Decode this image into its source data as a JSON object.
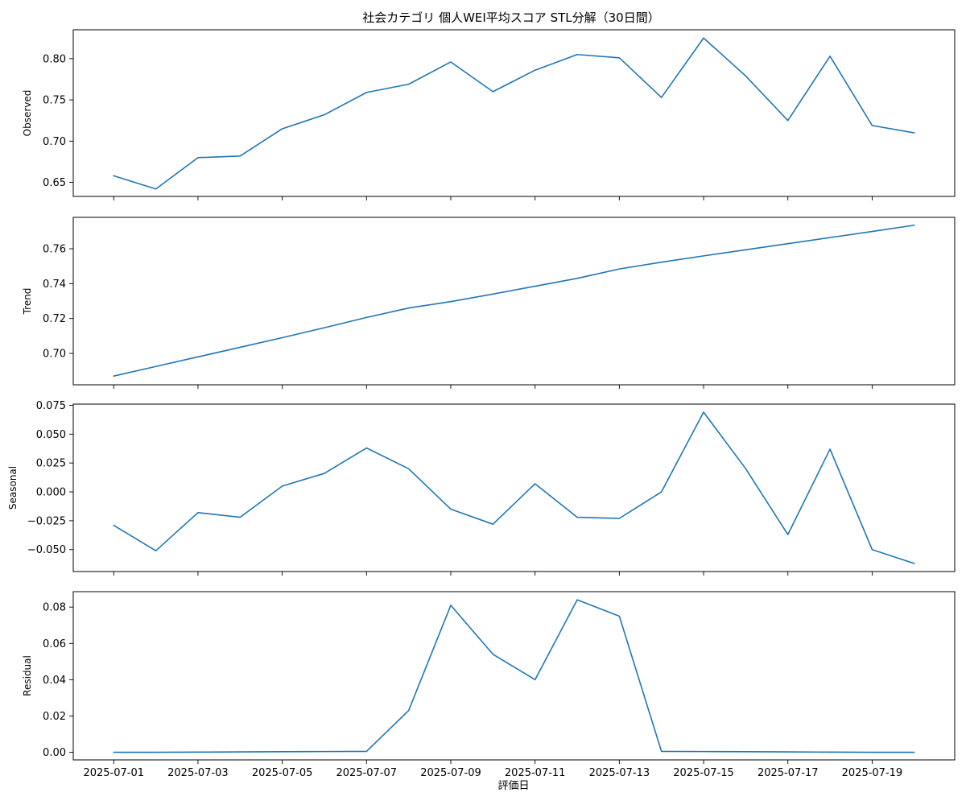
{
  "title": "社会カテゴリ 個人WEI平均スコア STL分解（30日間）",
  "xlabel": "評価日",
  "colors": {
    "line": "#1f77b4"
  },
  "chart_data": [
    {
      "type": "line",
      "ylabel": "Observed",
      "x": [
        "2025-07-01",
        "2025-07-02",
        "2025-07-03",
        "2025-07-04",
        "2025-07-05",
        "2025-07-06",
        "2025-07-07",
        "2025-07-08",
        "2025-07-09",
        "2025-07-10",
        "2025-07-11",
        "2025-07-12",
        "2025-07-13",
        "2025-07-14",
        "2025-07-15",
        "2025-07-16",
        "2025-07-17",
        "2025-07-18",
        "2025-07-19",
        "2025-07-20"
      ],
      "values": [
        0.658,
        0.642,
        0.68,
        0.682,
        0.715,
        0.732,
        0.759,
        0.769,
        0.796,
        0.76,
        0.786,
        0.805,
        0.801,
        0.753,
        0.825,
        0.779,
        0.725,
        0.803,
        0.719,
        0.71
      ],
      "ylim": [
        0.633,
        0.835
      ],
      "yticks": [
        "0.65",
        "0.70",
        "0.75",
        "0.80"
      ],
      "grid": false
    },
    {
      "type": "line",
      "ylabel": "Trend",
      "x": [
        "2025-07-01",
        "2025-07-02",
        "2025-07-03",
        "2025-07-04",
        "2025-07-05",
        "2025-07-06",
        "2025-07-07",
        "2025-07-08",
        "2025-07-09",
        "2025-07-10",
        "2025-07-11",
        "2025-07-12",
        "2025-07-13",
        "2025-07-14",
        "2025-07-15",
        "2025-07-16",
        "2025-07-17",
        "2025-07-18",
        "2025-07-19",
        "2025-07-20"
      ],
      "values": [
        0.687,
        0.6925,
        0.698,
        0.7035,
        0.709,
        0.7147,
        0.7206,
        0.726,
        0.7297,
        0.734,
        0.7385,
        0.743,
        0.7484,
        0.7523,
        0.7559,
        0.7594,
        0.7629,
        0.7664,
        0.7699,
        0.7735
      ],
      "ylim": [
        0.682,
        0.778
      ],
      "yticks": [
        "0.70",
        "0.72",
        "0.74",
        "0.76"
      ],
      "grid": false
    },
    {
      "type": "line",
      "ylabel": "Seasonal",
      "x": [
        "2025-07-01",
        "2025-07-02",
        "2025-07-03",
        "2025-07-04",
        "2025-07-05",
        "2025-07-06",
        "2025-07-07",
        "2025-07-08",
        "2025-07-09",
        "2025-07-10",
        "2025-07-11",
        "2025-07-12",
        "2025-07-13",
        "2025-07-14",
        "2025-07-15",
        "2025-07-16",
        "2025-07-17",
        "2025-07-18",
        "2025-07-19",
        "2025-07-20"
      ],
      "values": [
        -0.029,
        -0.051,
        -0.018,
        -0.022,
        0.005,
        0.016,
        0.038,
        0.02,
        -0.015,
        -0.028,
        0.007,
        -0.022,
        -0.023,
        0.0,
        0.069,
        0.02,
        -0.037,
        0.037,
        -0.05,
        -0.062
      ],
      "ylim": [
        -0.069,
        0.076
      ],
      "yticks": [
        "−0.050",
        "−0.025",
        "0.000",
        "0.025",
        "0.050",
        "0.075"
      ],
      "grid": false
    },
    {
      "type": "line",
      "ylabel": "Residual",
      "x": [
        "2025-07-01",
        "2025-07-02",
        "2025-07-03",
        "2025-07-04",
        "2025-07-05",
        "2025-07-06",
        "2025-07-07",
        "2025-07-08",
        "2025-07-09",
        "2025-07-10",
        "2025-07-11",
        "2025-07-12",
        "2025-07-13",
        "2025-07-14",
        "2025-07-15",
        "2025-07-16",
        "2025-07-17",
        "2025-07-18",
        "2025-07-19",
        "2025-07-20"
      ],
      "values": [
        0.0,
        0.0,
        0.0001,
        0.0002,
        0.0003,
        0.0004,
        0.0005,
        0.023,
        0.081,
        0.054,
        0.04,
        0.084,
        0.075,
        0.0005,
        0.0004,
        0.0003,
        0.0002,
        0.0001,
        0.0,
        0.0
      ],
      "ylim": [
        -0.0042,
        0.0885
      ],
      "yticks": [
        "0.00",
        "0.02",
        "0.04",
        "0.06",
        "0.08"
      ],
      "grid": false
    }
  ],
  "xticks": [
    "2025-07-01",
    "2025-07-03",
    "2025-07-05",
    "2025-07-07",
    "2025-07-09",
    "2025-07-11",
    "2025-07-13",
    "2025-07-15",
    "2025-07-17",
    "2025-07-19"
  ]
}
